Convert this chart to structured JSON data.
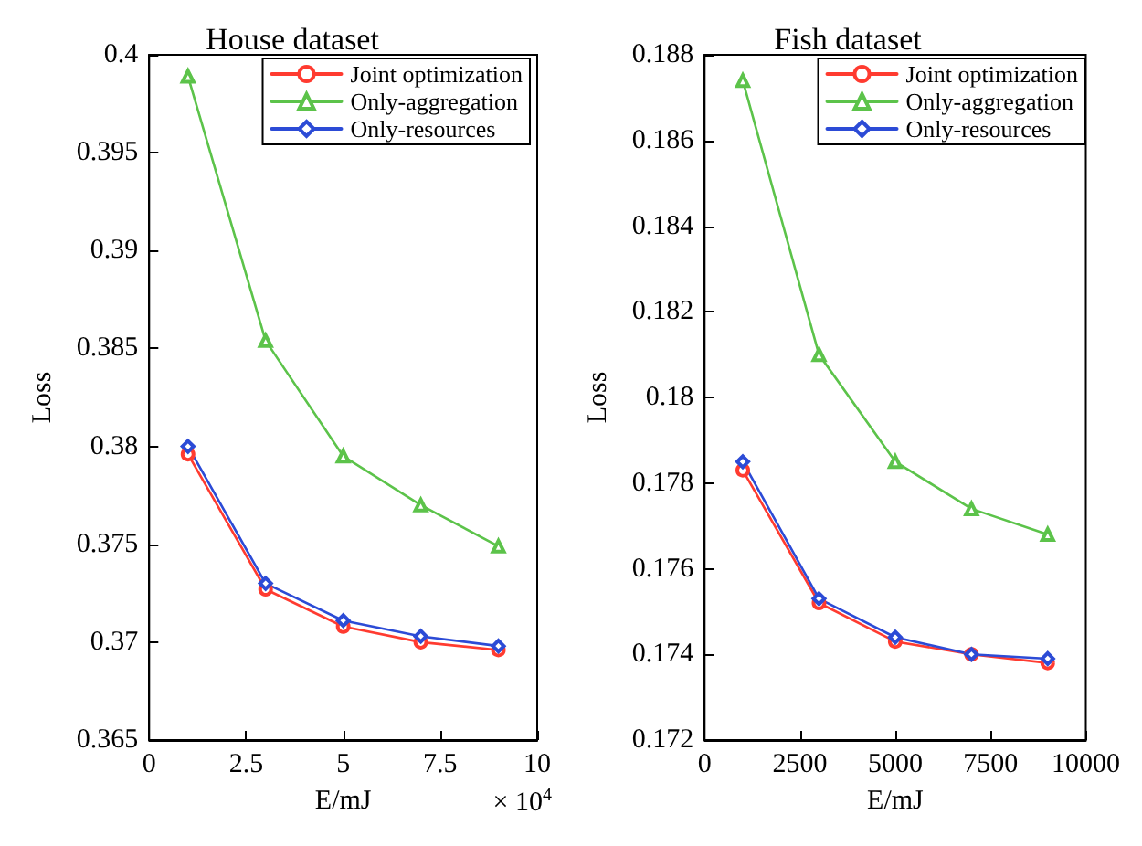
{
  "chart_data": [
    {
      "type": "line",
      "title": "House dataset",
      "xlabel": "E/mJ",
      "ylabel": "Loss",
      "x": [
        1,
        3,
        5,
        7,
        9
      ],
      "series": [
        {
          "name": "Joint optimization",
          "color": "#ff3b30",
          "marker": "circle",
          "values": [
            0.3796,
            0.3727,
            0.3708,
            0.37,
            0.3696
          ]
        },
        {
          "name": "Only-aggregation",
          "color": "#5cc34a",
          "marker": "triangle",
          "values": [
            0.3989,
            0.3854,
            0.3795,
            0.377,
            0.3749
          ]
        },
        {
          "name": "Only-resources",
          "color": "#2c4bd6",
          "marker": "diamond",
          "values": [
            0.38,
            0.373,
            0.3711,
            0.3703,
            0.3698
          ]
        }
      ],
      "xlim": [
        0,
        10
      ],
      "xticks": [
        0,
        2.5,
        5,
        7.5,
        10
      ],
      "ylim": [
        0.365,
        0.4
      ],
      "yticks": [
        0.365,
        0.37,
        0.375,
        0.38,
        0.385,
        0.39,
        0.395,
        0.4
      ],
      "annotations": [
        "× 10$^{4}$"
      ],
      "legend": "top right",
      "grid": false,
      "line_style": "solid"
    },
    {
      "type": "line",
      "title": "Fish dataset",
      "xlabel": "E/mJ",
      "ylabel": "Loss",
      "x": [
        1000,
        3000,
        5000,
        7000,
        9000
      ],
      "series": [
        {
          "name": "Joint optimization",
          "color": "#ff3b30",
          "marker": "circle",
          "values": [
            0.1783,
            0.1752,
            0.1743,
            0.174,
            0.1738
          ]
        },
        {
          "name": "Only-aggregation",
          "color": "#5cc34a",
          "marker": "triangle",
          "values": [
            0.1874,
            0.181,
            0.1785,
            0.1774,
            0.1768
          ]
        },
        {
          "name": "Only-resources",
          "color": "#2c4bd6",
          "marker": "diamond",
          "values": [
            0.1785,
            0.1753,
            0.1744,
            0.174,
            0.1739
          ]
        }
      ],
      "xlim": [
        0,
        10000
      ],
      "xticks": [
        0,
        2500,
        5000,
        7500,
        10000
      ],
      "ylim": [
        0.172,
        0.188
      ],
      "yticks": [
        0.172,
        0.174,
        0.176,
        0.178,
        0.18,
        0.182,
        0.184,
        0.186,
        0.188
      ],
      "legend": "top right",
      "grid": false,
      "line_style": "solid"
    }
  ]
}
